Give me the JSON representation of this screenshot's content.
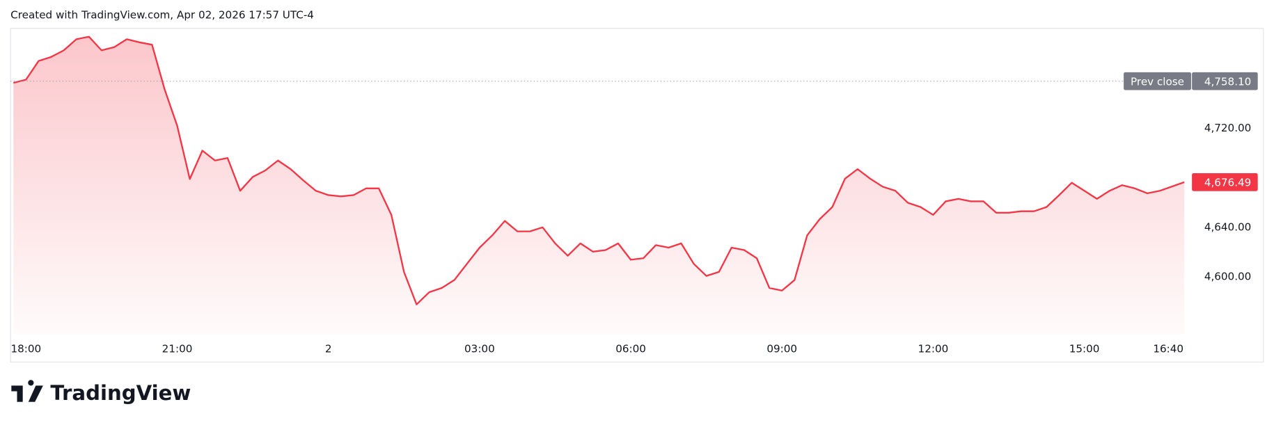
{
  "chart_data": {
    "type": "line",
    "header": "Created with TradingView.com, Apr 02, 2026 17:57 UTC-4",
    "brand": "TradingView",
    "x": [
      "17:45",
      "18:00",
      "18:15",
      "18:30",
      "18:45",
      "19:00",
      "19:15",
      "19:30",
      "19:45",
      "20:00",
      "20:15",
      "20:30",
      "20:45",
      "21:00",
      "21:15",
      "21:30",
      "21:45",
      "22:00",
      "22:15",
      "22:30",
      "22:45",
      "23:00",
      "23:15",
      "23:30",
      "23:45",
      "00:00",
      "00:15",
      "00:30",
      "00:45",
      "01:00",
      "01:15",
      "01:30",
      "01:45",
      "02:00",
      "02:15",
      "02:30",
      "02:45",
      "03:00",
      "03:15",
      "03:30",
      "03:45",
      "04:00",
      "04:15",
      "04:30",
      "04:45",
      "05:00",
      "05:15",
      "05:30",
      "05:45",
      "06:00",
      "06:15",
      "06:30",
      "06:45",
      "07:00",
      "07:15",
      "07:30",
      "07:45",
      "08:00",
      "08:15",
      "08:30",
      "08:45",
      "09:00",
      "09:15",
      "09:30",
      "09:45",
      "10:00",
      "10:15",
      "10:30",
      "10:45",
      "11:00",
      "11:15",
      "11:30",
      "11:45",
      "12:00",
      "12:15",
      "12:30",
      "12:45",
      "13:00",
      "13:15",
      "13:30",
      "13:45",
      "14:00",
      "14:15",
      "14:30",
      "14:45",
      "15:00",
      "15:15",
      "15:30",
      "15:45",
      "16:00",
      "16:15",
      "16:30",
      "16:59"
    ],
    "series": [
      {
        "color": "#f23645",
        "values": [
          4756.7,
          4759.3,
          4774.4,
          4777.7,
          4783,
          4792,
          4794,
          4783,
          4785.6,
          4792,
          4789.5,
          4787.5,
          4751.5,
          4722,
          4679,
          4702,
          4694,
          4696,
          4669.5,
          4680.7,
          4686,
          4694,
          4687,
          4678,
          4669.5,
          4666,
          4665,
          4666,
          4671.5,
          4671.5,
          4650,
          4604,
          4577.7,
          4587.5,
          4591,
          4597.4,
          4610.5,
          4623.6,
          4633.4,
          4645.2,
          4636.7,
          4636.7,
          4640,
          4627,
          4617,
          4627,
          4620.3,
          4621.6,
          4627,
          4613.8,
          4615,
          4625.6,
          4623.6,
          4627,
          4610.5,
          4600.7,
          4604,
          4623.6,
          4621.6,
          4615,
          4591,
          4588.9,
          4597.4,
          4633.4,
          4646.6,
          4656.4,
          4679.3,
          4687,
          4679.3,
          4672.8,
          4669.5,
          4659.7,
          4656.4,
          4650,
          4661,
          4663,
          4661,
          4661,
          4651.8,
          4651.8,
          4653,
          4653,
          4656.4,
          4666,
          4676,
          4669.5,
          4663,
          4669.5,
          4674,
          4671.5,
          4667.5,
          4669.5,
          4676.49
        ]
      }
    ],
    "xlim": [
      "17:42",
      "16:59"
    ],
    "xticks": [
      {
        "value": "18:00",
        "label": "18:00"
      },
      {
        "value": "21:00",
        "label": "21:00"
      },
      {
        "value": "00:00",
        "label": "2"
      },
      {
        "value": "03:00",
        "label": "03:00"
      },
      {
        "value": "06:00",
        "label": "06:00"
      },
      {
        "value": "09:00",
        "label": "09:00"
      },
      {
        "value": "12:00",
        "label": "12:00"
      },
      {
        "value": "15:00",
        "label": "15:00"
      },
      {
        "value": "16:40",
        "label": "16:40"
      }
    ],
    "ylim": [
      4553.4,
      4800.7
    ],
    "yticks": [
      {
        "value": 4600,
        "label": "4,600.00"
      },
      {
        "value": 4640,
        "label": "4,640.00"
      },
      {
        "value": 4720,
        "label": "4,720.00"
      }
    ],
    "prev_close": {
      "name": "Prev close",
      "value": 4758.1,
      "label": "4,758.10"
    },
    "last_price": {
      "value": 4676.49,
      "label": "4,676.49"
    },
    "grid": false
  }
}
